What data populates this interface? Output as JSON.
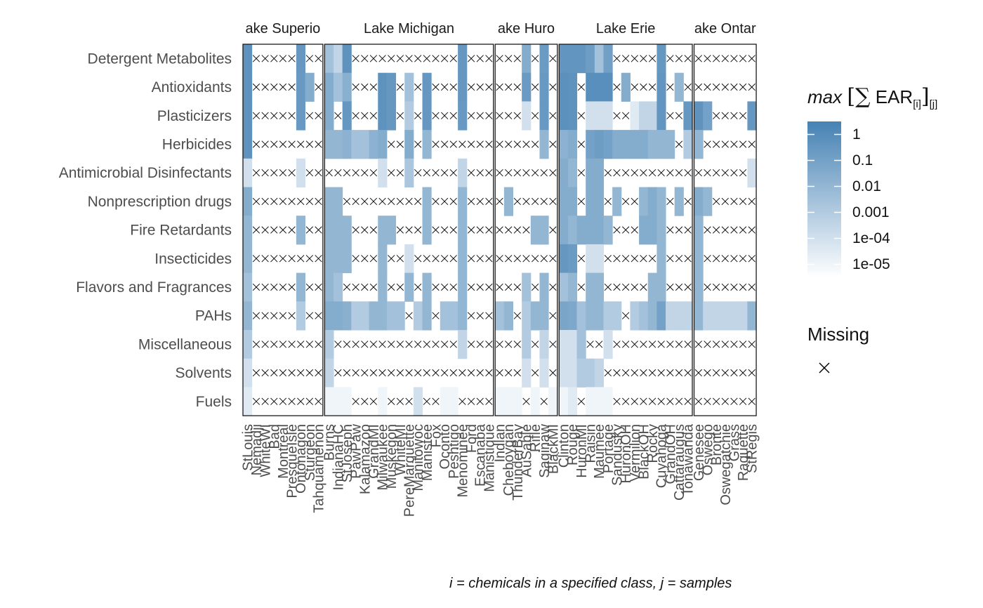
{
  "chart_data": {
    "type": "heatmap",
    "title": "",
    "legend": {
      "title_italic": "max",
      "title_sum": "[∑",
      "title_ear": "EAR",
      "title_sub_i": "[i]",
      "title_close": "]",
      "title_sub_j": "[j]",
      "ticks": [
        "1",
        "0.1",
        "0.01",
        "0.001",
        "1e-04",
        "1e-05"
      ],
      "tick_values": [
        0,
        -1,
        -2,
        -3,
        -4,
        -5
      ],
      "scale": "log10",
      "range": [
        -5.5,
        0.5
      ],
      "color_low": "#ffffff",
      "color_high": "#4682b4",
      "missing_label": "Missing",
      "missing_symbol": "×"
    },
    "caption": "i = chemicals in a specified class, j = samples",
    "rows": [
      "Detergent Metabolites",
      "Antioxidants",
      "Plasticizers",
      "Herbicides",
      "Antimicrobial Disinfectants",
      "Nonprescription drugs",
      "Fire Retardants",
      "Insecticides",
      "Flavors and Fragrances",
      "PAHs",
      "Miscellaneous",
      "Solvents",
      "Fuels"
    ],
    "facets": [
      {
        "name": "Lake Superior",
        "strip_label": "ake Superio",
        "sites": [
          "StLouis",
          "Nemadji",
          "WhiteWI",
          "Bad",
          "Montreal",
          "PresqueIsle",
          "Ontonagon",
          "Sturgeon",
          "Tahquamenon"
        ]
      },
      {
        "name": "Lake Michigan",
        "strip_label": "Lake Michigan",
        "sites": [
          "Burns",
          "IndianaHC",
          "StJoseph",
          "PawPaw",
          "Kalamazoo",
          "GrandMI",
          "Milwaukee",
          "Muskegon",
          "WhiteMI",
          "PereMarquette",
          "Manitowoc",
          "Manistee",
          "Fox",
          "Oconto",
          "Peshtigo",
          "Menominee",
          "Ford",
          "Escanaba",
          "Manistique"
        ]
      },
      {
        "name": "Lake Huron",
        "strip_label": "ake Huro",
        "sites": [
          "Indian",
          "Cheboygan",
          "ThunderBay",
          "AuSable",
          "Rifle",
          "Saginaw",
          "BlackMI"
        ]
      },
      {
        "name": "Lake Erie",
        "strip_label": "Lake Erie",
        "sites": [
          "Clinton",
          "Rouge",
          "HuronMI",
          "Raisin",
          "Maumee",
          "Portage",
          "Sandusky",
          "HuronOH",
          "Vermilion",
          "BlackOH",
          "Rocky",
          "Cuyahoga",
          "GrandOH",
          "Cattaraugus",
          "Tonawanda"
        ]
      },
      {
        "name": "Lake Ontario",
        "strip_label": "ake Ontar",
        "sites": [
          "Genesee",
          "Oswego",
          "Bronte",
          "Oswegatchie",
          "Grass",
          "Raquette",
          "StRegis"
        ]
      }
    ],
    "values": [
      [
        [
          -0.3,
          null,
          null,
          null,
          null,
          null,
          -0.5,
          null,
          null
        ],
        [
          -2.5,
          -3.5,
          -0.3,
          null,
          null,
          null,
          null,
          null,
          null,
          null,
          null,
          null,
          null,
          null,
          null,
          -0.5,
          null,
          null,
          null
        ],
        [
          null,
          null,
          null,
          -1.5,
          null,
          -0.7,
          null
        ],
        [
          -0.4,
          -0.4,
          -0.4,
          -0.8,
          -2.5,
          -0.9,
          null,
          null,
          null,
          null,
          null,
          -0.5,
          null,
          null,
          null
        ],
        [
          null,
          null,
          null,
          null,
          null,
          null,
          null
        ]
      ],
      [
        [
          -0.3,
          null,
          null,
          null,
          null,
          null,
          -0.6,
          -1.5,
          null
        ],
        [
          -1.5,
          -2.5,
          -1.7,
          null,
          null,
          null,
          -0.3,
          -0.5,
          null,
          -2.5,
          null,
          -0.5,
          null,
          null,
          null,
          -0.5,
          null,
          null,
          null
        ],
        [
          null,
          null,
          null,
          -0.7,
          null,
          -0.6,
          null
        ],
        [
          -0.2,
          -0.3,
          null,
          -0.1,
          -0.1,
          -0.1,
          null,
          -1.5,
          null,
          null,
          null,
          -0.4,
          null,
          -2,
          null
        ],
        [
          null,
          null,
          null,
          null,
          null,
          null,
          null
        ]
      ],
      [
        [
          -0.3,
          null,
          null,
          null,
          null,
          null,
          -0.6,
          null,
          null
        ],
        [
          -1.5,
          null,
          -0.5,
          null,
          null,
          null,
          -0.3,
          -0.5,
          null,
          -3,
          null,
          -0.5,
          null,
          null,
          null,
          -0.6,
          null,
          null,
          null
        ],
        [
          null,
          null,
          null,
          -4,
          null,
          -0.6,
          null
        ],
        [
          -0.2,
          -0.3,
          null,
          -4,
          -4,
          -4,
          null,
          null,
          -4.5,
          -3.5,
          -3.5,
          -0.4,
          null,
          null,
          -0.5
        ],
        [
          -0.3,
          -1,
          null,
          null,
          null,
          null,
          -0.5
        ]
      ],
      [
        [
          -0.3,
          null,
          null,
          null,
          null,
          null,
          null,
          null,
          null
        ],
        [
          -2,
          -2,
          -1.8,
          -2.5,
          -2.5,
          -1.8,
          -1.5,
          null,
          null,
          -1.5,
          null,
          -2,
          null,
          null,
          null,
          null,
          null,
          null,
          null
        ],
        [
          null,
          null,
          null,
          null,
          null,
          -2,
          null
        ],
        [
          -1.8,
          -1.5,
          null,
          -1,
          -0.8,
          -1,
          -1.5,
          -1.5,
          -1.5,
          -1.5,
          -2,
          -2,
          -2,
          null,
          -3
        ],
        [
          -2,
          null,
          null,
          null,
          null,
          null,
          null
        ]
      ],
      [
        [
          -4,
          null,
          null,
          null,
          null,
          null,
          -4,
          null,
          null
        ],
        [
          null,
          null,
          null,
          null,
          null,
          null,
          -4,
          null,
          null,
          -2.8,
          null,
          null,
          null,
          null,
          null,
          -3.5,
          null,
          null,
          null
        ],
        [
          null,
          null,
          null,
          null,
          null,
          null,
          null
        ],
        [
          -1.5,
          -2,
          null,
          -1.5,
          -1.5,
          null,
          null,
          null,
          null,
          null,
          null,
          null,
          null,
          null,
          null
        ],
        [
          null,
          null,
          null,
          null,
          null,
          null,
          -4
        ]
      ],
      [
        [
          -1.5,
          null,
          null,
          null,
          null,
          null,
          null,
          null,
          null
        ],
        [
          -2,
          -2,
          null,
          null,
          null,
          null,
          null,
          null,
          null,
          null,
          null,
          -2,
          null,
          null,
          null,
          -2,
          null,
          null,
          null
        ],
        [
          null,
          -2,
          null,
          null,
          null,
          null,
          null
        ],
        [
          -1.5,
          -1.5,
          null,
          -1.5,
          -1.5,
          null,
          -2,
          null,
          null,
          -2,
          -1.5,
          -2,
          null,
          -2,
          null
        ],
        [
          -1.5,
          -2,
          null,
          null,
          null,
          null,
          null
        ]
      ],
      [
        [
          -2,
          null,
          null,
          null,
          null,
          null,
          -2,
          null,
          null
        ],
        [
          -2,
          -2,
          -2,
          null,
          null,
          null,
          -2,
          -2,
          null,
          null,
          null,
          -2,
          null,
          null,
          null,
          -2,
          null,
          null,
          null
        ],
        [
          null,
          null,
          null,
          null,
          -2,
          -2,
          null
        ],
        [
          -1.5,
          -2,
          -1.5,
          -1.5,
          -1.5,
          -2,
          null,
          null,
          null,
          -1.5,
          -1.5,
          -2,
          null,
          null,
          null
        ],
        [
          -2,
          null,
          null,
          null,
          null,
          null,
          null
        ]
      ],
      [
        [
          -2,
          null,
          null,
          null,
          null,
          null,
          null,
          null,
          null
        ],
        [
          -2,
          -2,
          -2,
          null,
          null,
          null,
          -2,
          null,
          null,
          -4,
          null,
          null,
          null,
          null,
          null,
          -2,
          null,
          null,
          null
        ],
        [
          null,
          null,
          null,
          null,
          null,
          null,
          null
        ],
        [
          -0.5,
          -0.7,
          null,
          -4,
          -4,
          null,
          null,
          null,
          null,
          null,
          null,
          -2,
          null,
          null,
          null
        ],
        [
          -2,
          null,
          null,
          null,
          null,
          null,
          null
        ]
      ],
      [
        [
          -2.5,
          null,
          null,
          null,
          null,
          null,
          -2,
          null,
          null
        ],
        [
          -2,
          -2.5,
          null,
          null,
          null,
          null,
          -2,
          null,
          null,
          -2,
          null,
          -2,
          null,
          null,
          null,
          -2,
          null,
          null,
          null
        ],
        [
          null,
          null,
          null,
          -2.5,
          null,
          -2,
          null
        ],
        [
          -2.5,
          -2,
          null,
          -2,
          -2,
          null,
          null,
          null,
          null,
          null,
          -2,
          -2,
          null,
          null,
          null
        ],
        [
          -2,
          null,
          null,
          null,
          null,
          null,
          null
        ]
      ],
      [
        [
          -2,
          null,
          null,
          null,
          null,
          null,
          -3,
          null,
          null
        ],
        [
          -1.5,
          -1.5,
          -1.7,
          -3,
          -3,
          -2,
          -2,
          -2.5,
          -2.5,
          null,
          -3,
          -2,
          null,
          -2.5,
          -2.5,
          -2,
          null,
          null,
          null
        ],
        [
          -2.5,
          -2,
          null,
          -3,
          -2,
          -2,
          null
        ],
        [
          -1.2,
          -1.3,
          -2.5,
          -2,
          -2,
          -3,
          -3,
          null,
          -3,
          -2.5,
          -2,
          -1,
          -3.5,
          -3.5,
          -3.5
        ],
        [
          -2,
          -3.5,
          -3.5,
          -3.5,
          -3.5,
          -3.5,
          -2
        ]
      ],
      [
        [
          -3,
          null,
          null,
          null,
          null,
          null,
          null,
          null,
          null
        ],
        [
          -3,
          null,
          null,
          null,
          null,
          null,
          null,
          null,
          null,
          null,
          null,
          null,
          null,
          null,
          null,
          -3.5,
          null,
          null,
          null
        ],
        [
          null,
          null,
          null,
          -3,
          null,
          -3.5,
          null
        ],
        [
          -4,
          -4,
          -2.5,
          null,
          null,
          -4,
          null,
          null,
          null,
          null,
          null,
          null,
          null,
          null,
          null
        ],
        [
          null,
          null,
          null,
          null,
          null,
          null,
          null
        ]
      ],
      [
        [
          -4,
          null,
          null,
          null,
          null,
          null,
          null,
          null,
          null
        ],
        [
          -3.5,
          null,
          null,
          null,
          null,
          null,
          null,
          null,
          null,
          null,
          null,
          null,
          null,
          null,
          null,
          null,
          null,
          null,
          null
        ],
        [
          null,
          null,
          null,
          -4,
          null,
          -4,
          null
        ],
        [
          -4,
          -4,
          -3,
          -3,
          -3.5,
          null,
          null,
          null,
          null,
          null,
          null,
          null,
          null,
          null,
          null
        ],
        [
          null,
          null,
          null,
          null,
          null,
          null,
          null
        ]
      ],
      [
        [
          -4.5,
          null,
          null,
          null,
          null,
          null,
          null,
          null,
          null
        ],
        [
          -5,
          -5,
          -5,
          null,
          null,
          null,
          -5,
          null,
          null,
          null,
          -4,
          null,
          null,
          -5,
          -5,
          null,
          null,
          null,
          null
        ],
        [
          -5,
          -5,
          -5,
          null,
          -5,
          null,
          -5
        ],
        [
          -5,
          -4.5,
          null,
          -5,
          -5,
          -5,
          null,
          null,
          null,
          null,
          null,
          null,
          null,
          null,
          null
        ],
        [
          null,
          null,
          null,
          null,
          null,
          null,
          null
        ]
      ]
    ]
  }
}
